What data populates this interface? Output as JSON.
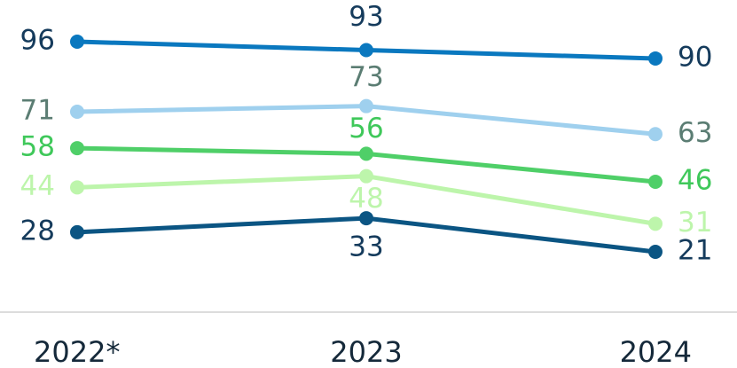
{
  "chart_data": {
    "type": "line",
    "categories": [
      "2022*",
      "2023",
      "2024"
    ],
    "series": [
      {
        "color": "#0a78bf",
        "label_color": "#153b5c",
        "values": [
          96,
          93,
          90
        ]
      },
      {
        "color": "#9fd0ee",
        "label_color": "#5b7d73",
        "values": [
          71,
          73,
          63
        ]
      },
      {
        "color": "#4fcf68",
        "label_color": "#3fc85a",
        "values": [
          58,
          56,
          46
        ]
      },
      {
        "color": "#bdf5ab",
        "label_color": "#bdf5ab",
        "values": [
          44,
          48,
          31
        ]
      },
      {
        "color": "#0b5583",
        "label_color": "#153b5c",
        "values": [
          28,
          33,
          21
        ]
      }
    ],
    "grid": false
  }
}
